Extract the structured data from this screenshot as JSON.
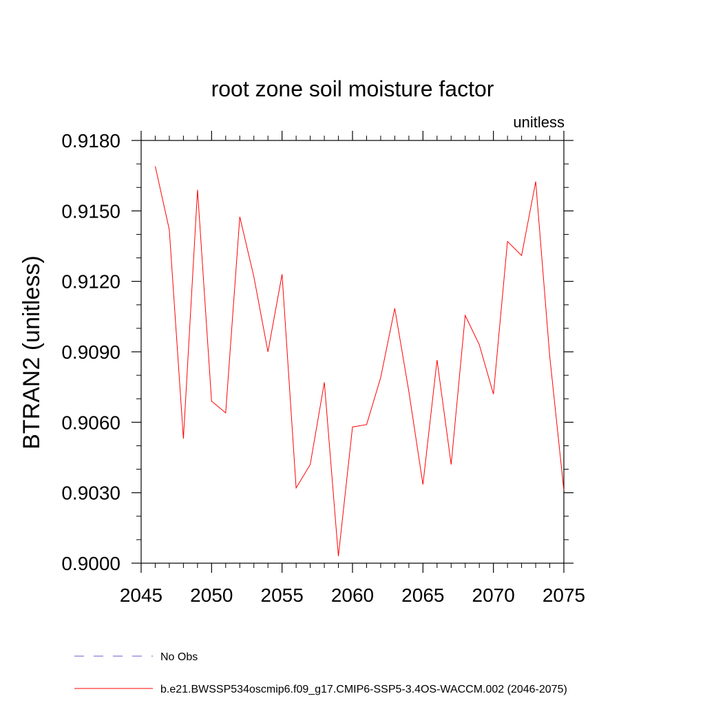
{
  "chart_data": {
    "type": "line",
    "title": "root zone soil moisture factor",
    "units_label": "unitless",
    "xlabel": "",
    "ylabel": "BTRAN2  (unitless)",
    "xlim": [
      2045,
      2075
    ],
    "ylim": [
      0.9,
      0.918
    ],
    "x_ticks": [
      2045,
      2050,
      2055,
      2060,
      2065,
      2070,
      2075
    ],
    "x_tick_labels": [
      "2045",
      "2050",
      "2055",
      "2060",
      "2065",
      "2070",
      "2075"
    ],
    "y_ticks": [
      0.9,
      0.903,
      0.906,
      0.909,
      0.912,
      0.915,
      0.918
    ],
    "y_tick_labels": [
      "0.9000",
      "0.9030",
      "0.9060",
      "0.9090",
      "0.9120",
      "0.9150",
      "0.9180"
    ],
    "grid": false,
    "legend_position": "bottom",
    "series": [
      {
        "name": "b.e21.BWSSP534oscmip6.f09_g17.CMIP6-SSP5-3.4OS-WACCM.002 (2046-2075)",
        "color": "#ff0000",
        "style": "solid",
        "x": [
          2046,
          2047,
          2048,
          2049,
          2050,
          2051,
          2052,
          2053,
          2054,
          2055,
          2056,
          2057,
          2058,
          2059,
          2060,
          2061,
          2062,
          2063,
          2064,
          2065,
          2066,
          2067,
          2068,
          2069,
          2070,
          2071,
          2072,
          2073,
          2074,
          2075
        ],
        "values": [
          0.9169,
          0.9142,
          0.9053,
          0.9159,
          0.9069,
          0.9064,
          0.91475,
          0.9122,
          0.909,
          0.9123,
          0.9032,
          0.9042,
          0.9077,
          0.9003,
          0.9058,
          0.9059,
          0.9079,
          0.91085,
          0.9073,
          0.90335,
          0.90865,
          0.9042,
          0.91055,
          0.9093,
          0.9072,
          0.9137,
          0.9131,
          0.91625,
          0.9088,
          0.9031
        ]
      }
    ],
    "legend": [
      {
        "label": "No Obs",
        "color": "#6a5acd",
        "style": "dashed"
      },
      {
        "label": "b.e21.BWSSP534oscmip6.f09_g17.CMIP6-SSP5-3.4OS-WACCM.002 (2046-2075)",
        "color": "#ff0000",
        "style": "solid"
      }
    ]
  }
}
